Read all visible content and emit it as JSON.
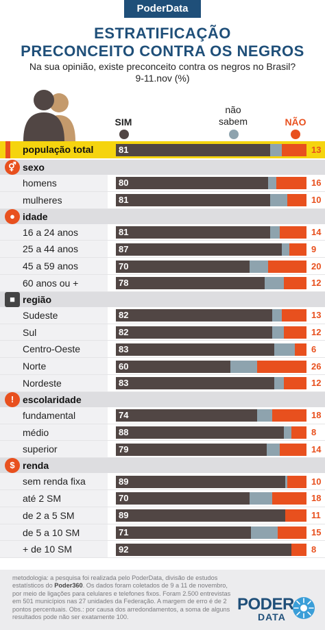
{
  "header": {
    "brand": "PoderData",
    "title_line1": "ESTRATIFICAÇÃO",
    "title_line2": "PRECONCEITO CONTRA OS NEGROS",
    "question": "Na sua opinião, existe preconceito contra os negros no Brasil?",
    "date_unit": "9-11.nov  (%)"
  },
  "legend": {
    "sim": "SIM",
    "nao_sabem_1": "não",
    "nao_sabem_2": "sabem",
    "nao": "NÃO",
    "colors": {
      "sim": "#514644",
      "nao_sabem": "#8ea3ae",
      "nao": "#e8501e"
    }
  },
  "icons": {
    "sexo": "gender-icon",
    "idade": "person-icon",
    "regiao": "brazil-map-icon",
    "escolaridade": "exclamation-icon",
    "renda": "dollar-icon"
  },
  "chart_data": {
    "type": "bar",
    "orientation": "horizontal",
    "stacked": true,
    "series_names": [
      "SIM",
      "não sabem",
      "NÃO"
    ],
    "total": {
      "label": "população total",
      "sim": 81,
      "nao_sabem": 6,
      "nao": 13
    },
    "groups": [
      {
        "key": "sexo",
        "label": "sexo",
        "rows": [
          {
            "label": "homens",
            "sim": 80,
            "nao_sabem": 4,
            "nao": 16
          },
          {
            "label": "mulheres",
            "sim": 81,
            "nao_sabem": 9,
            "nao": 10
          }
        ]
      },
      {
        "key": "idade",
        "label": "idade",
        "rows": [
          {
            "label": "16 a 24 anos",
            "sim": 81,
            "nao_sabem": 5,
            "nao": 14
          },
          {
            "label": "25 a 44 anos",
            "sim": 87,
            "nao_sabem": 4,
            "nao": 9
          },
          {
            "label": "45 a 59 anos",
            "sim": 70,
            "nao_sabem": 10,
            "nao": 20
          },
          {
            "label": "60 anos ou +",
            "sim": 78,
            "nao_sabem": 10,
            "nao": 12
          }
        ]
      },
      {
        "key": "regiao",
        "label": "região",
        "rows": [
          {
            "label": "Sudeste",
            "sim": 82,
            "nao_sabem": 5,
            "nao": 13
          },
          {
            "label": "Sul",
            "sim": 82,
            "nao_sabem": 6,
            "nao": 12
          },
          {
            "label": "Centro-Oeste",
            "sim": 83,
            "nao_sabem": 11,
            "nao": 6
          },
          {
            "label": "Norte",
            "sim": 60,
            "nao_sabem": 14,
            "nao": 26
          },
          {
            "label": "Nordeste",
            "sim": 83,
            "nao_sabem": 5,
            "nao": 12
          }
        ]
      },
      {
        "key": "escolaridade",
        "label": "escolaridade",
        "rows": [
          {
            "label": "fundamental",
            "sim": 74,
            "nao_sabem": 8,
            "nao": 18
          },
          {
            "label": "médio",
            "sim": 88,
            "nao_sabem": 4,
            "nao": 8
          },
          {
            "label": "superior",
            "sim": 79,
            "nao_sabem": 7,
            "nao": 14
          }
        ]
      },
      {
        "key": "renda",
        "label": "renda",
        "rows": [
          {
            "label": "sem renda fixa",
            "sim": 89,
            "nao_sabem": 1,
            "nao": 10
          },
          {
            "label": "até 2 SM",
            "sim": 70,
            "nao_sabem": 12,
            "nao": 18
          },
          {
            "label": "de 2 a 5 SM",
            "sim": 89,
            "nao_sabem": 0,
            "nao": 11
          },
          {
            "label": "de 5 a 10 SM",
            "sim": 71,
            "nao_sabem": 14,
            "nao": 15
          },
          {
            "label": "+ de 10 SM",
            "sim": 92,
            "nao_sabem": 0,
            "nao": 8
          }
        ]
      }
    ]
  },
  "footer": {
    "methodology_1": "metodologia: a pesquisa foi realizada pelo PoderData, divisão de estudos estatísticos do ",
    "methodology_brand": "Poder360",
    "methodology_2": ". Os dados foram coletados de 9 a 11 de novembro, por meio de ligações para celulares e telefones fixos. Foram 2.500 entrevistas em 501 municípios nas 27 unidades da Federação. A margem de erro é de 2 pontos percentuais. Obs.: por causa dos arredondamentos, a soma de alguns resultados pode não ser exatamente 100.",
    "logo_line1": "PODER",
    "logo_line2": "DATA"
  }
}
